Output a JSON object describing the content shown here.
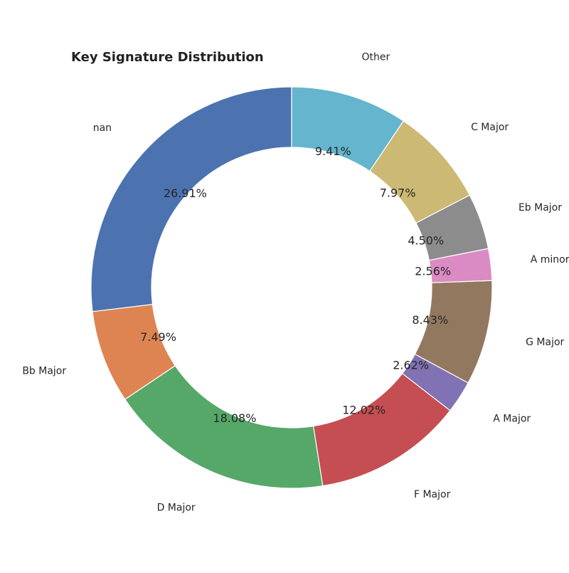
{
  "chart_data": {
    "type": "pie",
    "style": "donut",
    "title": "Key Signature Distribution",
    "start_angle_deg": 90,
    "direction": "counterclockwise",
    "legend": "none",
    "slices": [
      {
        "label": "nan",
        "value": 26.91,
        "pct_label": "26.91%",
        "color": "#4c72b0"
      },
      {
        "label": "Bb Major",
        "value": 7.49,
        "pct_label": "7.49%",
        "color": "#dd8452"
      },
      {
        "label": "D Major",
        "value": 18.08,
        "pct_label": "18.08%",
        "color": "#55a868"
      },
      {
        "label": "F Major",
        "value": 12.02,
        "pct_label": "12.02%",
        "color": "#c44e52"
      },
      {
        "label": "A Major",
        "value": 2.62,
        "pct_label": "2.62%",
        "color": "#8172b3"
      },
      {
        "label": "G Major",
        "value": 8.43,
        "pct_label": "8.43%",
        "color": "#937860"
      },
      {
        "label": "A minor",
        "value": 2.56,
        "pct_label": "2.56%",
        "color": "#da8bc3"
      },
      {
        "label": "Eb Major",
        "value": 4.5,
        "pct_label": "4.50%",
        "color": "#8c8c8c"
      },
      {
        "label": "C Major",
        "value": 7.97,
        "pct_label": "7.97%",
        "color": "#ccb974"
      },
      {
        "label": "Other",
        "value": 9.41,
        "pct_label": "9.41%",
        "color": "#64b5cd"
      }
    ]
  }
}
